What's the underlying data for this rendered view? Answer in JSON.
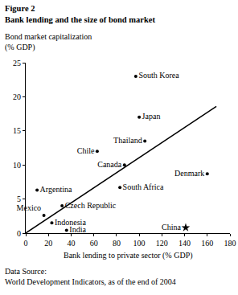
{
  "chart_data": {
    "type": "scatter",
    "title": [
      "Figure 2",
      "Bank lending and the size of bond market"
    ],
    "ylabel": [
      "Bond market capitalization",
      "(% GDP)"
    ],
    "xlabel": "Bank lending to private sector (% GDP)",
    "source": [
      "Data Source:",
      "World Development Indicators, as of the end of 2004"
    ],
    "xlim": [
      0,
      180
    ],
    "xticks": [
      0,
      20,
      40,
      60,
      80,
      100,
      120,
      140,
      160,
      180
    ],
    "ylim": [
      0,
      25
    ],
    "yticks": [
      0,
      5,
      10,
      15,
      20,
      25
    ],
    "grid": false,
    "color": "#000000",
    "series": [
      {
        "type": "scatter",
        "marker": "circle",
        "labels": [
          "South Korea",
          "Japan",
          "Thailand",
          "Chile",
          "Canada",
          "Denmark",
          "South Africa",
          "Argentina",
          "Mexico",
          "Czech Republic",
          "Indonesia",
          "India"
        ],
        "x": [
          97,
          100,
          105,
          63,
          87,
          160,
          83,
          10,
          16,
          32,
          23,
          36
        ],
        "values": [
          23,
          17,
          13.5,
          12,
          10,
          8.7,
          6.7,
          6.3,
          2.6,
          4,
          1.5,
          0.4
        ]
      },
      {
        "type": "scatter",
        "marker": "star",
        "labels": [
          "China"
        ],
        "x": [
          141
        ],
        "values": [
          0.8
        ]
      },
      {
        "type": "line",
        "x": [
          0,
          168
        ],
        "values": [
          0,
          18.6
        ]
      }
    ]
  }
}
